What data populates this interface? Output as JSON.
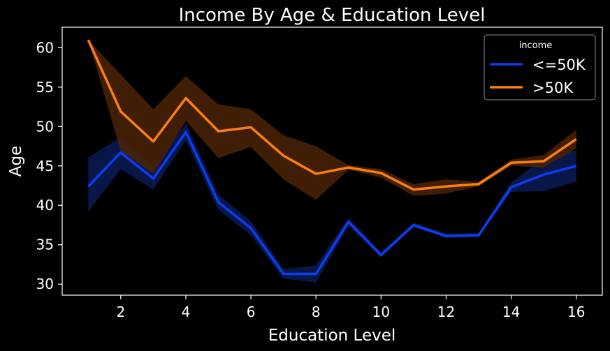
{
  "chart_data": {
    "type": "line",
    "title": "Income By Age & Education Level",
    "xlabel": "Education Level",
    "ylabel": "Age",
    "xlim": [
      0.2,
      16.8
    ],
    "ylim": [
      28.6,
      62.6
    ],
    "xticks": [
      2,
      4,
      6,
      8,
      10,
      12,
      14,
      16
    ],
    "yticks": [
      30,
      35,
      40,
      45,
      50,
      55,
      60
    ],
    "grid": false,
    "legend": {
      "title": "income",
      "position": "top-right"
    },
    "x": [
      1,
      2,
      3,
      4,
      5,
      6,
      7,
      8,
      9,
      10,
      11,
      12,
      13,
      14,
      15,
      16
    ],
    "series": [
      {
        "name": "<=50K",
        "color": "#0a3ef5",
        "values": [
          42.4,
          46.7,
          43.4,
          49.3,
          40.4,
          37.1,
          31.3,
          31.3,
          37.9,
          33.7,
          37.5,
          36.1,
          36.2,
          42.3,
          43.9,
          45.0
        ],
        "ci_low": [
          39.2,
          44.6,
          42.0,
          48.2,
          39.4,
          36.2,
          30.7,
          30.2,
          37.4,
          33.4,
          37.2,
          35.9,
          36.0,
          41.7,
          41.8,
          43.0
        ],
        "ci_high": [
          46.1,
          48.6,
          44.8,
          50.4,
          41.4,
          38.0,
          31.9,
          32.4,
          38.4,
          34.0,
          37.8,
          36.4,
          36.5,
          42.9,
          46.0,
          47.0
        ]
      },
      {
        "name": ">50K",
        "color": "#ff7f0e",
        "values": [
          61.0,
          51.9,
          48.1,
          53.6,
          49.4,
          49.9,
          46.3,
          44.0,
          44.8,
          44.1,
          42.0,
          42.4,
          42.7,
          45.4,
          45.6,
          48.4
        ],
        "ci_low": [
          61.0,
          46.9,
          44.0,
          50.7,
          46.0,
          47.4,
          43.3,
          40.7,
          44.5,
          43.5,
          41.2,
          41.5,
          42.4,
          45.0,
          44.8,
          47.2
        ],
        "ci_high": [
          61.0,
          56.6,
          52.2,
          56.4,
          52.8,
          52.2,
          48.9,
          47.5,
          45.1,
          44.6,
          42.7,
          43.3,
          43.0,
          45.8,
          46.4,
          49.6
        ]
      }
    ]
  }
}
